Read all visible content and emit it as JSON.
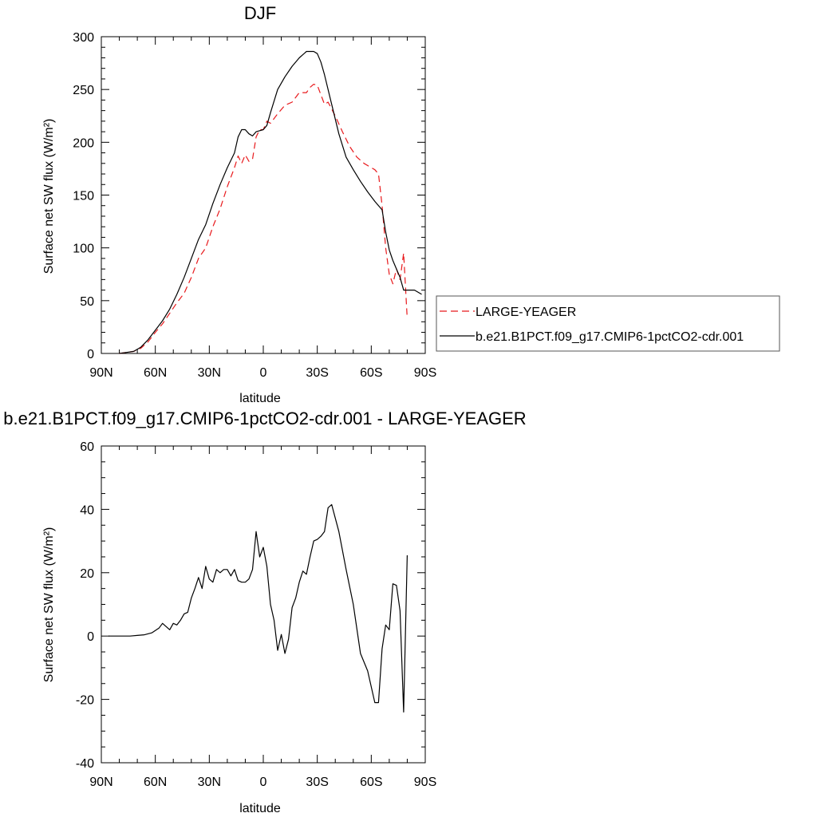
{
  "chart_data": [
    {
      "type": "line",
      "title": "DJF",
      "xlabel": "latitude",
      "ylabel": "Surface net SW flux (W/m²)",
      "xlim": [
        90,
        -90
      ],
      "ylim": [
        0,
        300
      ],
      "x_ticks": [
        90,
        60,
        30,
        0,
        -30,
        -60,
        -90
      ],
      "x_tick_labels": [
        "90N",
        "60N",
        "30N",
        "0",
        "30S",
        "60S",
        "90S"
      ],
      "y_ticks": [
        0,
        50,
        100,
        150,
        200,
        250,
        300
      ],
      "y_tick_labels": [
        "0",
        "50",
        "100",
        "150",
        "200",
        "250",
        "300"
      ],
      "grid": false,
      "legend_position": "right",
      "series": [
        {
          "name": "LARGE-YEAGER",
          "color": "#e8191c",
          "dash": "dashed",
          "x": [
            80,
            76,
            72,
            68,
            64,
            60,
            56,
            52,
            48,
            44,
            40,
            36,
            32,
            28,
            24,
            20,
            16,
            14,
            12,
            10,
            8,
            6,
            4,
            2,
            0,
            -2,
            -4,
            -8,
            -12,
            -16,
            -20,
            -24,
            -26,
            -28,
            -30,
            -32,
            -34,
            -36,
            -40,
            -44,
            -48,
            -52,
            -56,
            -60,
            -62,
            -64,
            -66,
            -68,
            -70,
            -72,
            -74,
            -76,
            -78,
            -80
          ],
          "y": [
            0,
            1,
            2,
            5,
            11,
            20,
            28,
            38,
            48,
            57,
            72,
            90,
            100,
            120,
            137,
            158,
            176,
            187,
            180,
            188,
            182,
            184,
            205,
            212,
            212,
            220,
            218,
            227,
            235,
            238,
            247,
            247,
            252,
            255,
            254,
            245,
            236,
            238,
            225,
            210,
            196,
            186,
            180,
            176,
            174,
            170,
            140,
            100,
            75,
            66,
            80,
            70,
            95,
            33
          ]
        },
        {
          "name": "b.e21.B1PCT.f09_g17.CMIP6-1pctCO2-cdr.001",
          "color": "#000000",
          "dash": "solid",
          "x": [
            80,
            76,
            72,
            68,
            64,
            60,
            56,
            52,
            48,
            44,
            40,
            36,
            32,
            28,
            24,
            20,
            16,
            14,
            12,
            10,
            8,
            6,
            4,
            2,
            0,
            -2,
            -4,
            -8,
            -12,
            -16,
            -20,
            -24,
            -26,
            -28,
            -30,
            -32,
            -34,
            -38,
            -42,
            -46,
            -50,
            -54,
            -58,
            -62,
            -66,
            -68,
            -70,
            -72,
            -74,
            -76,
            -78,
            -80,
            -84,
            -88
          ],
          "y": [
            0,
            1,
            2,
            6,
            13,
            22,
            31,
            42,
            56,
            72,
            90,
            108,
            122,
            142,
            160,
            176,
            190,
            205,
            212,
            212,
            208,
            206,
            210,
            211,
            212,
            216,
            228,
            250,
            262,
            272,
            280,
            286,
            286,
            286,
            284,
            276,
            264,
            236,
            208,
            186,
            174,
            163,
            153,
            144,
            136,
            115,
            98,
            88,
            80,
            72,
            60,
            60,
            60,
            56
          ]
        }
      ]
    },
    {
      "type": "line",
      "title": "b.e21.B1PCT.f09_g17.CMIP6-1pctCO2-cdr.001 - LARGE-YEAGER",
      "xlabel": "latitude",
      "ylabel": "Surface net SW flux (W/m²)",
      "xlim": [
        90,
        -90
      ],
      "ylim": [
        -40,
        60
      ],
      "x_ticks": [
        90,
        60,
        30,
        0,
        -30,
        -60,
        -90
      ],
      "x_tick_labels": [
        "90N",
        "60N",
        "30N",
        "0",
        "30S",
        "60S",
        "90S"
      ],
      "y_ticks": [
        -40,
        -20,
        0,
        20,
        40,
        60
      ],
      "y_tick_labels": [
        "-40",
        "-20",
        "0",
        "20",
        "40",
        "60"
      ],
      "grid": false,
      "series": [
        {
          "color": "#000000",
          "dash": "solid",
          "x": [
            86,
            82,
            78,
            74,
            70,
            66,
            62,
            58,
            56,
            54,
            52,
            50,
            48,
            46,
            44,
            42,
            40,
            38,
            36,
            34,
            32,
            30,
            28,
            26,
            24,
            22,
            20,
            18,
            16,
            14,
            12,
            10,
            8,
            6,
            4,
            2,
            0,
            -2,
            -4,
            -6,
            -8,
            -10,
            -12,
            -14,
            -16,
            -18,
            -20,
            -22,
            -24,
            -26,
            -28,
            -30,
            -32,
            -34,
            -36,
            -38,
            -42,
            -46,
            -50,
            -54,
            -58,
            -62,
            -64,
            -66,
            -68,
            -70,
            -72,
            -74,
            -76,
            -78,
            -80
          ],
          "y": [
            0,
            0,
            0,
            0,
            0.2,
            0.4,
            1,
            2.5,
            4,
            3,
            2,
            4,
            3.5,
            5,
            7,
            7.5,
            12,
            15,
            18.5,
            15,
            22,
            18,
            17,
            21,
            20,
            21,
            21,
            19,
            21,
            17.5,
            17,
            17,
            18,
            21,
            33,
            25,
            28,
            22,
            10,
            5,
            -4.5,
            0.5,
            -5.5,
            -1,
            9,
            12,
            17,
            20.5,
            19.5,
            25,
            30,
            30.5,
            31.5,
            33,
            40.5,
            41.5,
            33,
            21,
            10,
            -5.5,
            -11,
            -21,
            -21,
            -4,
            3.5,
            2,
            16.5,
            16,
            8,
            -24,
            25.5
          ]
        }
      ]
    }
  ]
}
